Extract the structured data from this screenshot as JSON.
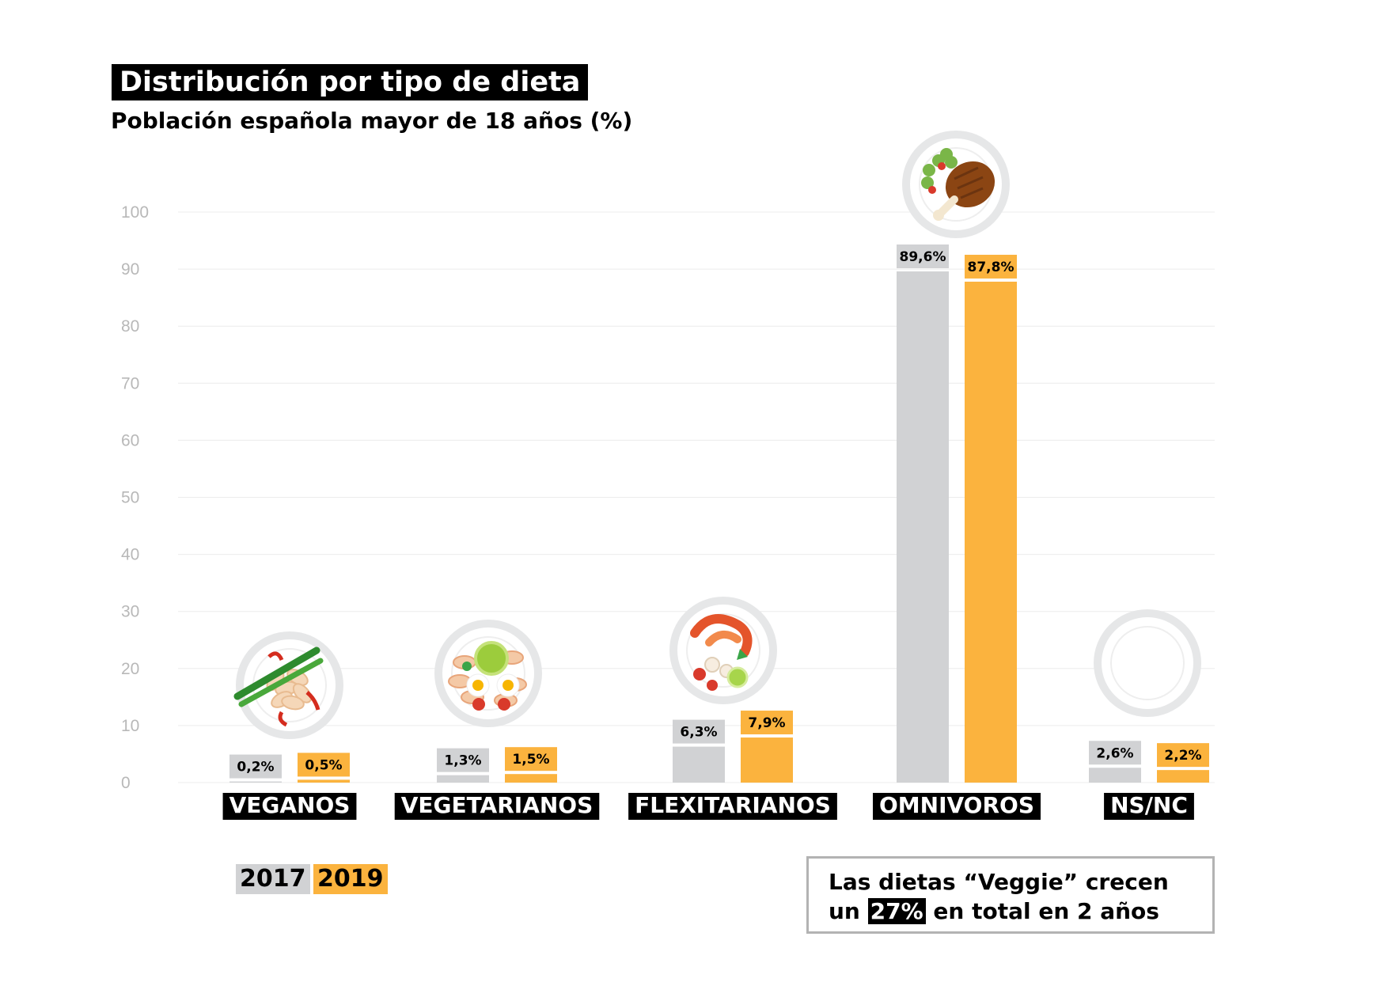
{
  "title": "Distribución por tipo de dieta",
  "subtitle": "Población española mayor de 18 años (%)",
  "legend": [
    {
      "label": "2017",
      "color": "#d1d2d4"
    },
    {
      "label": "2019",
      "color": "#fbb33e"
    }
  ],
  "note": {
    "line1": "Las dietas “Veggie” crecen",
    "line2_pre": "un",
    "line2_highlight": "27%",
    "line2_post": "en total en 2 años"
  },
  "chart_data": {
    "type": "bar",
    "categories": [
      "VEGANOS",
      "VEGETARIANOS",
      "FLEXITARIANOS",
      "OMNIVOROS",
      "NS/NC"
    ],
    "series": [
      {
        "name": "2017",
        "color": "#d1d2d4",
        "values": [
          0.2,
          1.3,
          6.3,
          89.6,
          2.6
        ],
        "labels": [
          "0,2%",
          "1,3%",
          "6,3%",
          "89,6%",
          "2,6%"
        ]
      },
      {
        "name": "2019",
        "color": "#fbb33e",
        "values": [
          0.5,
          1.5,
          7.9,
          87.8,
          2.2
        ],
        "labels": [
          "0,5%",
          "1,5%",
          "7,9%",
          "87,8%",
          "2,2%"
        ]
      }
    ],
    "y_ticks": [
      0,
      10,
      20,
      30,
      40,
      50,
      60,
      70,
      80,
      90,
      100
    ],
    "ylim": [
      0,
      100
    ],
    "grid": true,
    "icons": [
      "vegan-pasta-plate-icon",
      "vegetarian-salad-plate-icon",
      "seafood-plate-icon",
      "meat-plate-icon",
      "empty-plate-icon"
    ]
  }
}
